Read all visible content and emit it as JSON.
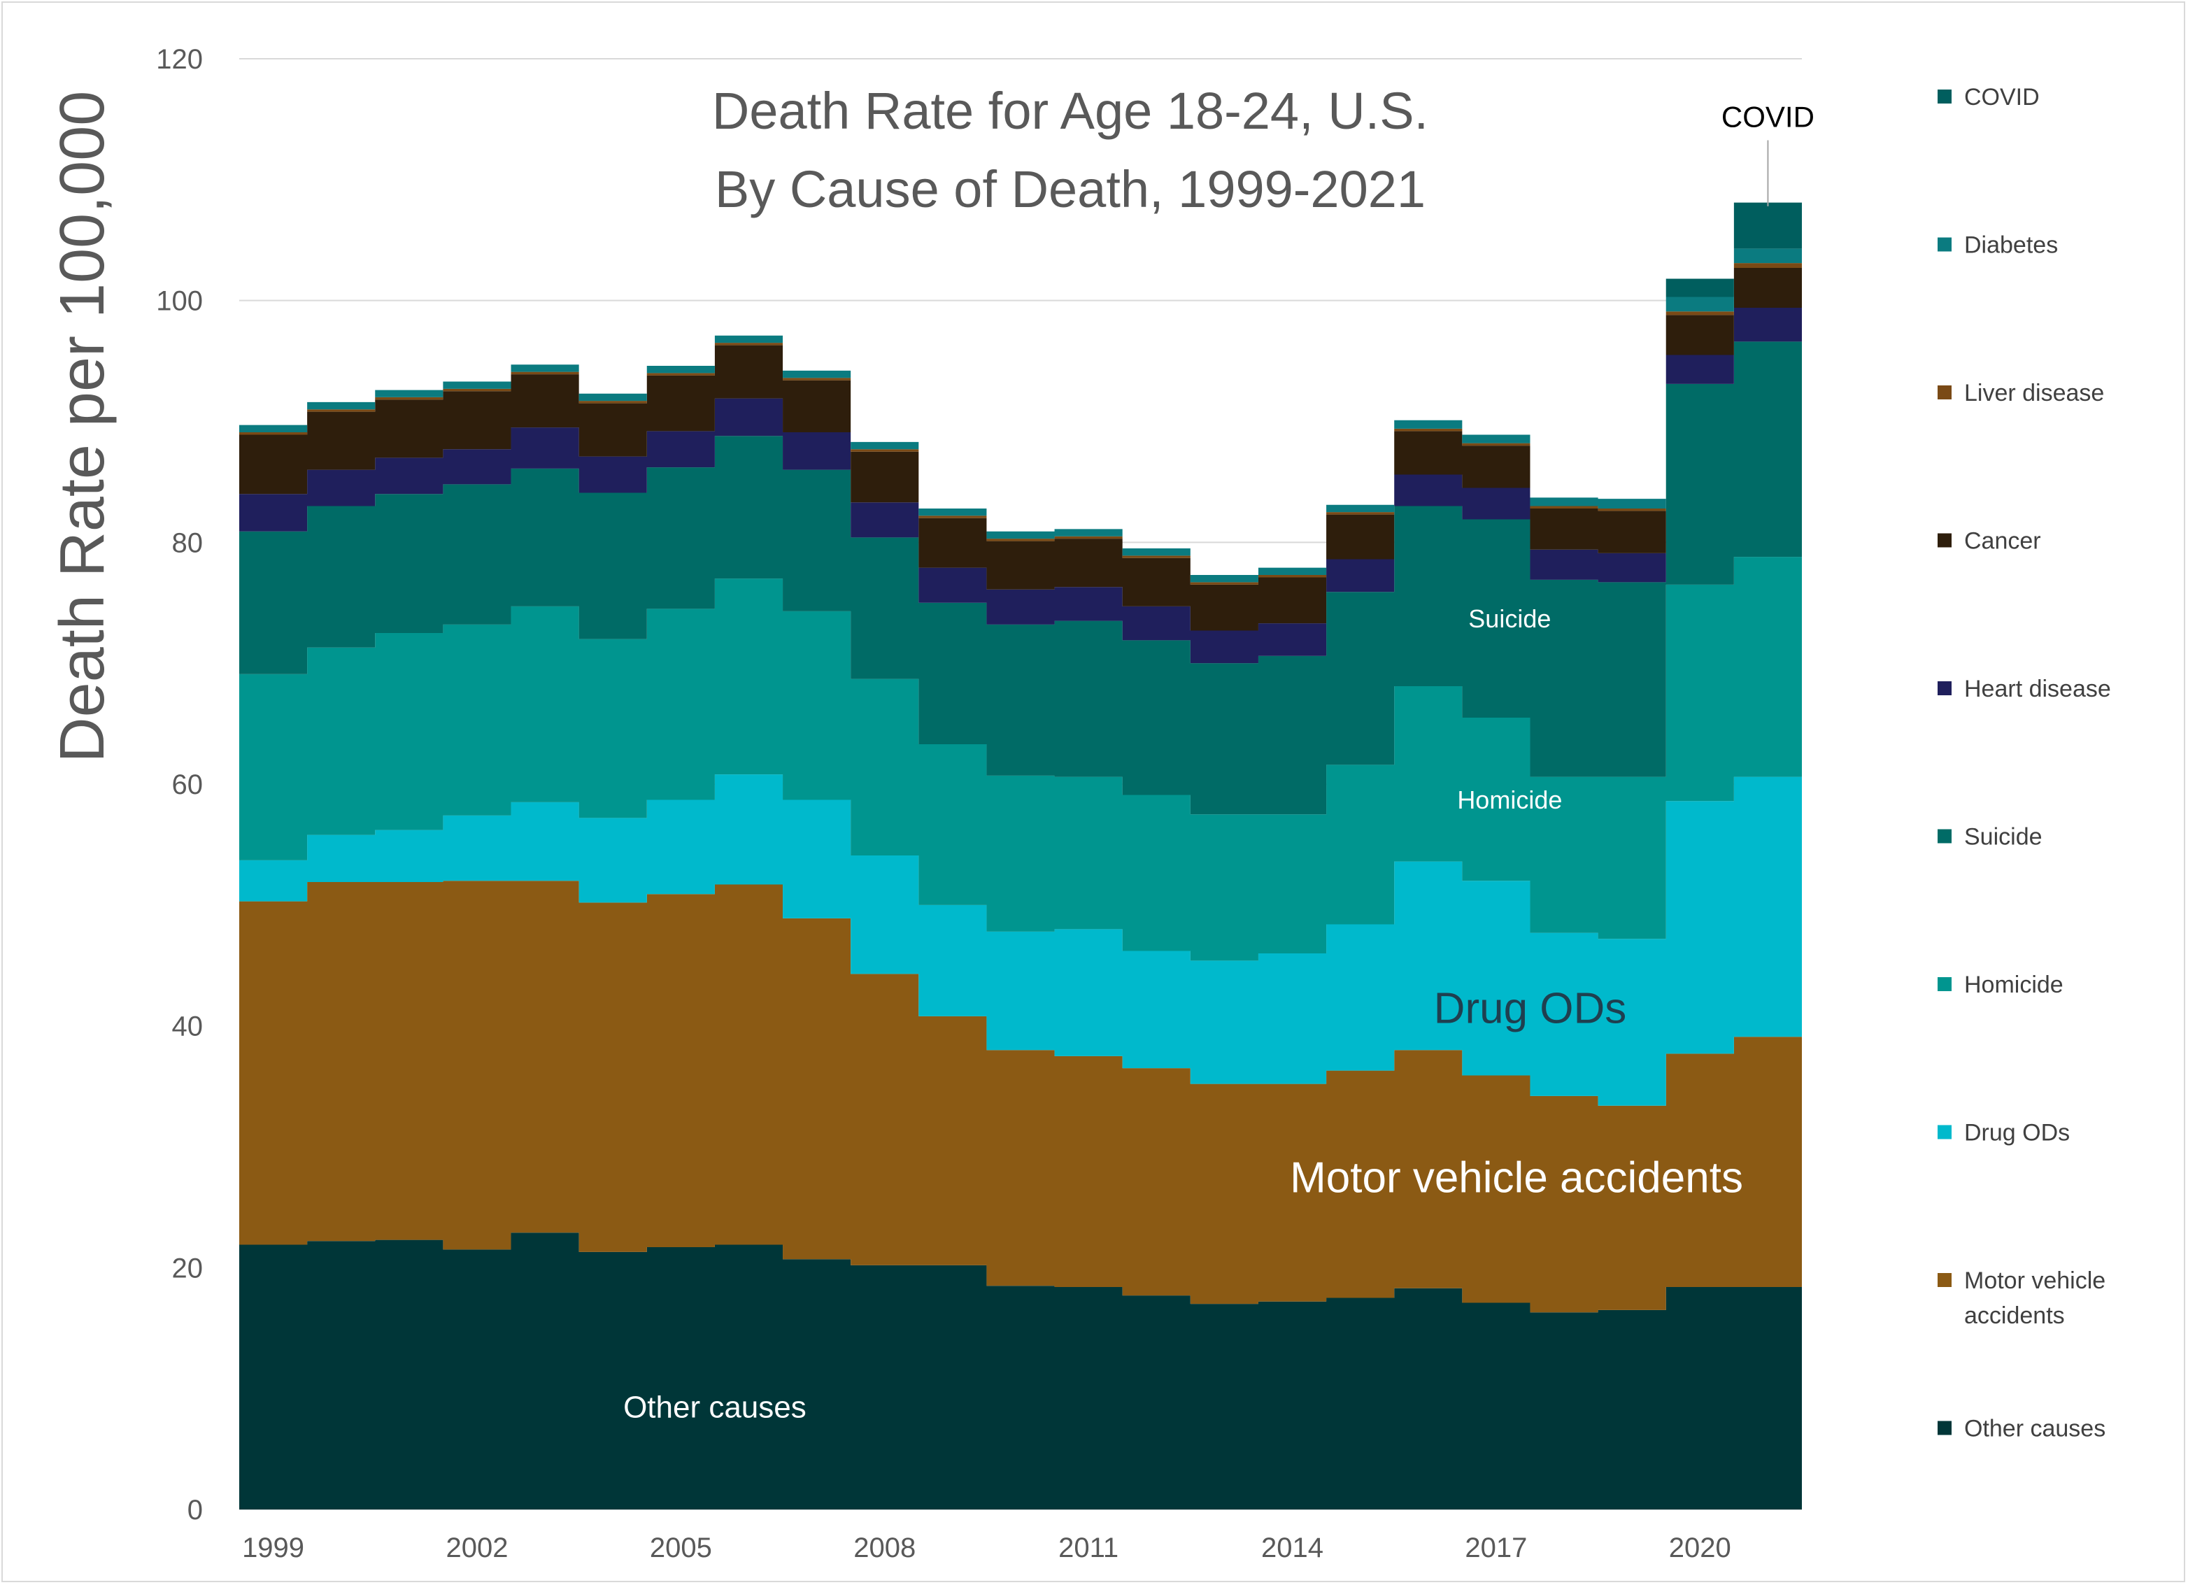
{
  "chart_data": {
    "type": "area",
    "step": true,
    "stacked": true,
    "title": "Death Rate for Age 18-24, U.S.",
    "subtitle": "By Cause of Death, 1999-2021",
    "ylabel": "Death Rate per 100,000",
    "xlabel": "",
    "ylim": [
      0,
      120
    ],
    "yticks": [
      0,
      20,
      40,
      60,
      80,
      100,
      120
    ],
    "grid": true,
    "legend_position": "right",
    "x": [
      1999,
      2000,
      2001,
      2002,
      2003,
      2004,
      2005,
      2006,
      2007,
      2008,
      2009,
      2010,
      2011,
      2012,
      2013,
      2014,
      2015,
      2016,
      2017,
      2018,
      2019,
      2020,
      2021
    ],
    "xtick_labels": [
      "1999",
      "2002",
      "2005",
      "2008",
      "2011",
      "2014",
      "2017",
      "2020"
    ],
    "series": [
      {
        "name": "Other causes",
        "color": "#003638",
        "values": [
          21.9,
          22.2,
          22.3,
          21.5,
          22.9,
          21.3,
          21.7,
          21.9,
          20.7,
          20.2,
          20.2,
          18.5,
          18.4,
          17.7,
          17.0,
          17.2,
          17.5,
          18.3,
          17.1,
          16.3,
          16.5,
          18.4,
          18.4
        ]
      },
      {
        "name": "Motor vehicle accidents",
        "color": "#8b5a14",
        "values": [
          28.4,
          29.7,
          29.6,
          30.5,
          29.1,
          28.9,
          29.2,
          29.8,
          28.2,
          24.1,
          20.6,
          19.5,
          19.1,
          18.8,
          18.2,
          18.0,
          18.8,
          19.7,
          18.8,
          17.9,
          16.9,
          19.3,
          20.7
        ]
      },
      {
        "name": "Drug ODs",
        "color": "#00b9cc",
        "values": [
          3.4,
          3.9,
          4.3,
          5.4,
          6.5,
          7.0,
          7.8,
          9.1,
          9.8,
          9.8,
          9.2,
          9.8,
          10.5,
          9.7,
          10.2,
          10.8,
          12.1,
          15.6,
          16.1,
          13.5,
          13.8,
          20.9,
          21.5
        ]
      },
      {
        "name": "Homicide",
        "color": "#00958f",
        "values": [
          15.4,
          15.5,
          16.3,
          15.8,
          16.2,
          14.8,
          15.8,
          16.2,
          15.6,
          14.6,
          13.3,
          12.9,
          12.6,
          12.9,
          12.1,
          11.5,
          13.2,
          14.5,
          13.5,
          12.9,
          13.4,
          17.9,
          18.2
        ]
      },
      {
        "name": "Suicide",
        "color": "#006b66",
        "values": [
          11.8,
          11.7,
          11.5,
          11.6,
          11.4,
          12.1,
          11.7,
          11.8,
          11.7,
          11.7,
          11.7,
          12.5,
          12.9,
          12.8,
          12.5,
          13.1,
          14.3,
          14.9,
          16.4,
          16.3,
          16.1,
          16.6,
          17.8
        ]
      },
      {
        "name": "Heart disease",
        "color": "#1f1f5c",
        "values": [
          3.1,
          3.0,
          3.0,
          2.9,
          3.4,
          3.0,
          3.0,
          3.1,
          3.1,
          2.9,
          2.9,
          2.9,
          2.8,
          2.8,
          2.7,
          2.7,
          2.7,
          2.6,
          2.6,
          2.5,
          2.4,
          2.4,
          2.8
        ]
      },
      {
        "name": "Cancer",
        "color": "#2e1e0c",
        "values": [
          4.9,
          4.8,
          4.8,
          4.8,
          4.4,
          4.4,
          4.6,
          4.4,
          4.3,
          4.2,
          4.1,
          4.0,
          4.0,
          4.0,
          3.8,
          3.8,
          3.7,
          3.6,
          3.5,
          3.4,
          3.5,
          3.3,
          3.3
        ]
      },
      {
        "name": "Liver disease",
        "color": "#7a4a16",
        "values": [
          0.2,
          0.2,
          0.2,
          0.2,
          0.2,
          0.2,
          0.2,
          0.2,
          0.2,
          0.2,
          0.2,
          0.2,
          0.2,
          0.2,
          0.2,
          0.2,
          0.2,
          0.2,
          0.2,
          0.2,
          0.2,
          0.3,
          0.4
        ]
      },
      {
        "name": "Diabetes",
        "color": "#0b7b80",
        "values": [
          0.6,
          0.6,
          0.6,
          0.6,
          0.6,
          0.6,
          0.6,
          0.6,
          0.6,
          0.6,
          0.6,
          0.6,
          0.6,
          0.6,
          0.6,
          0.6,
          0.6,
          0.7,
          0.7,
          0.7,
          0.8,
          1.2,
          1.2
        ]
      },
      {
        "name": "COVID",
        "color": "#005e5e",
        "values": [
          0,
          0,
          0,
          0,
          0,
          0,
          0,
          0,
          0,
          0,
          0,
          0,
          0,
          0,
          0,
          0,
          0,
          0,
          0,
          0,
          0,
          1.5,
          3.8
        ]
      }
    ],
    "annotations": [
      {
        "text": "Other causes",
        "x": 2005.5,
        "y": 8.5,
        "size": 44,
        "color": "#ffffff"
      },
      {
        "text": "Motor vehicle accidents",
        "x": 2017.3,
        "y": 27.5,
        "size": 62,
        "color": "#ffffff"
      },
      {
        "text": "Drug ODs",
        "x": 2017.5,
        "y": 41.5,
        "size": 62,
        "color": "#1f3f4f"
      },
      {
        "text": "Homicide",
        "x": 2017.2,
        "y": 58.7,
        "size": 36,
        "color": "#ffffff"
      },
      {
        "text": "Suicide",
        "x": 2017.2,
        "y": 73.7,
        "size": 36,
        "color": "#ffffff"
      },
      {
        "text": "COVID",
        "x": 2021,
        "y": 115.2,
        "size": 42,
        "color": "#000000",
        "leader_to": 107.8
      }
    ],
    "legend_entries": [
      "COVID",
      "Diabetes",
      "Liver disease",
      "Cancer",
      "Heart disease",
      "Suicide",
      "Homicide",
      "Drug ODs",
      "Motor vehicle accidents",
      "Other causes"
    ]
  }
}
